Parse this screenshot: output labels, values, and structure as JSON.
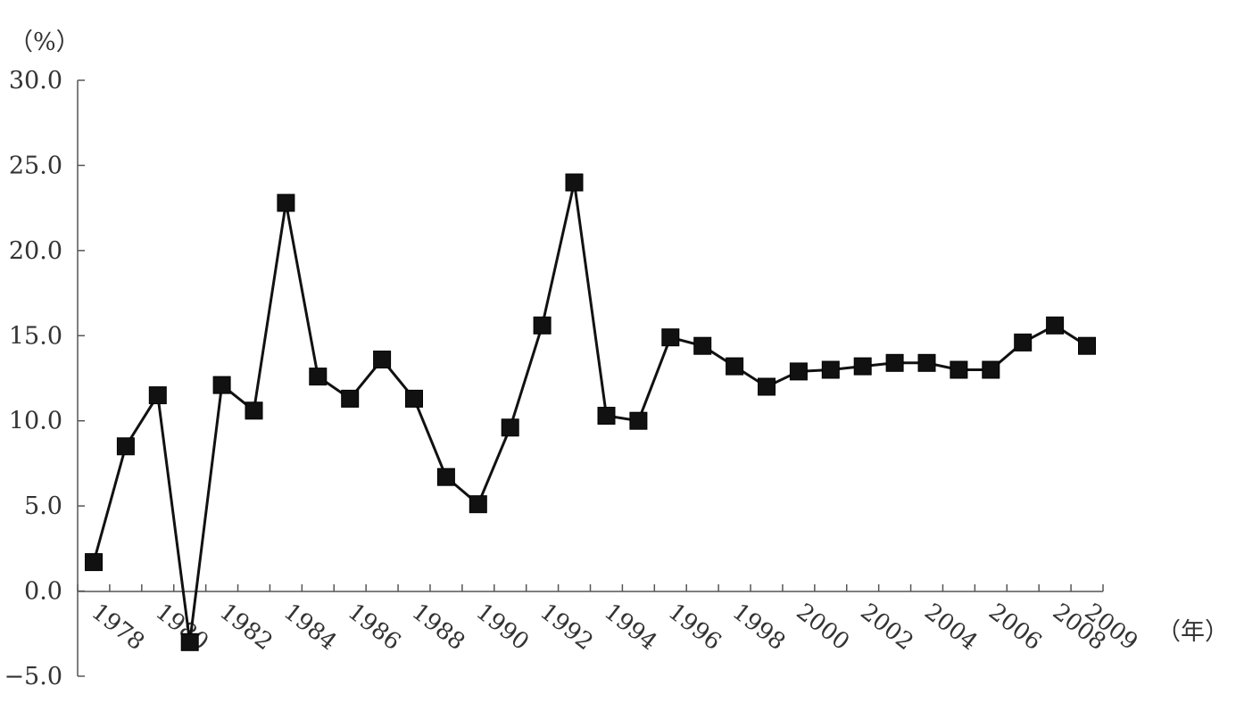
{
  "chart_data": {
    "type": "line",
    "title": "",
    "ylabel": "（%）",
    "xlabel": "（年）",
    "ylim": [
      -5.0,
      30.0
    ],
    "y_ticks": [
      "30.0",
      "25.0",
      "20.0",
      "15.0",
      "10.0",
      "5.0",
      "0.0",
      "−5.0"
    ],
    "x_tick_labels": [
      "1978",
      "1980",
      "1982",
      "1984",
      "1986",
      "1988",
      "1990",
      "1992",
      "1994",
      "1996",
      "1998",
      "2000",
      "2002",
      "2004",
      "2006",
      "2008",
      "2009"
    ],
    "grid": false,
    "legend": "none",
    "marker": "square",
    "series": [
      {
        "x": [
          1978,
          1979,
          1980,
          1981,
          1982,
          1983,
          1984,
          1985,
          1986,
          1987,
          1988,
          1989,
          1990,
          1991,
          1992,
          1993,
          1994,
          1995,
          1996,
          1997,
          1998,
          1999,
          2000,
          2001,
          2002,
          2003,
          2004,
          2005,
          2006,
          2007,
          2008,
          2009
        ],
        "values": [
          1.7,
          8.5,
          11.5,
          -3.0,
          12.1,
          10.6,
          22.8,
          12.6,
          11.3,
          13.6,
          11.3,
          6.7,
          5.1,
          9.6,
          15.6,
          24.0,
          10.3,
          10.0,
          14.9,
          14.4,
          13.2,
          12.0,
          12.9,
          13.0,
          13.2,
          13.4,
          13.4,
          13.0,
          13.0,
          14.6,
          15.6,
          14.4
        ]
      }
    ],
    "color": "#111111"
  }
}
